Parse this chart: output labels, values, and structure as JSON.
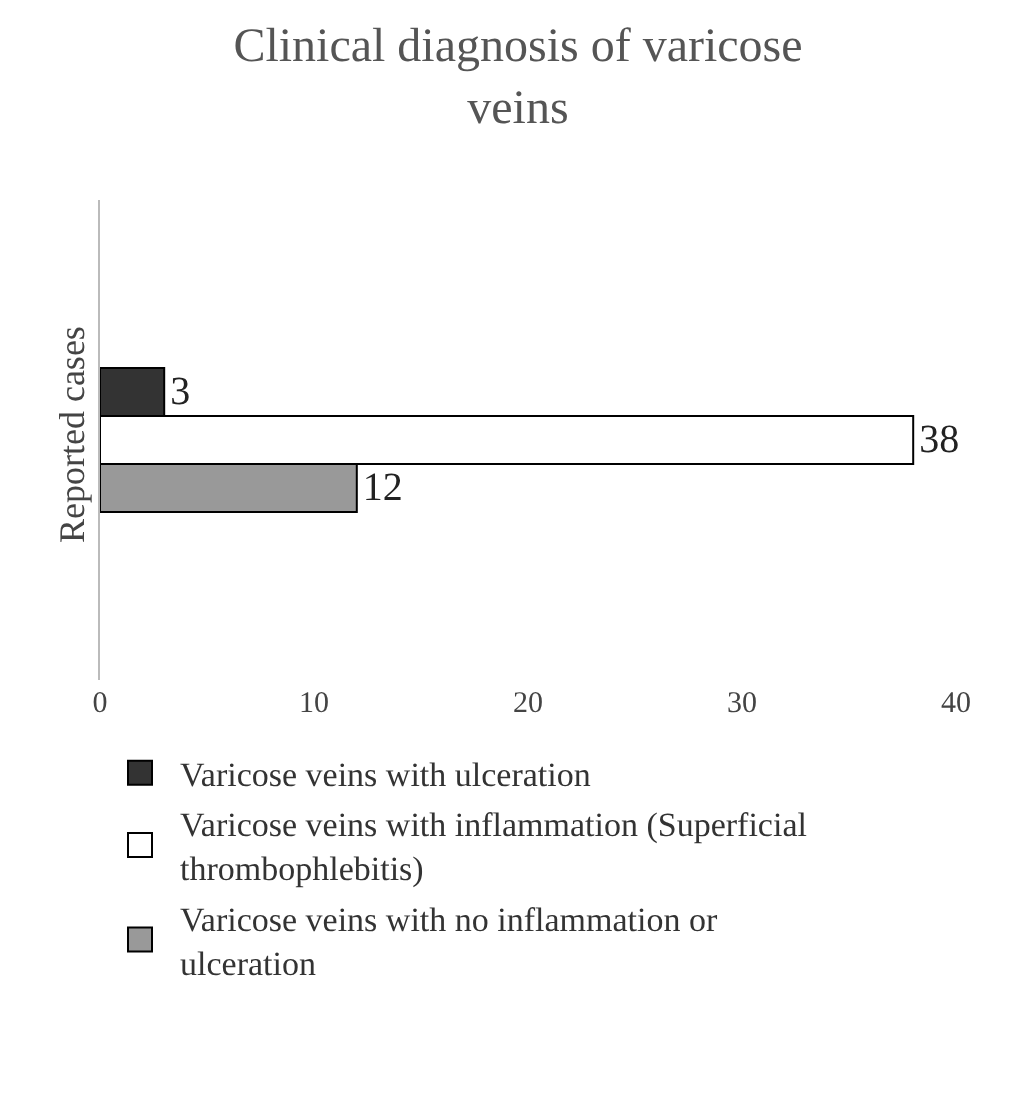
{
  "chart_data": {
    "type": "bar",
    "title": "Clinical diagnosis of varicose veins",
    "orientation": "horizontal",
    "categories": [
      "Reported cases"
    ],
    "series": [
      {
        "name": "Varicose veins with ulceration",
        "color": "#333333",
        "values": [
          3
        ]
      },
      {
        "name": "Varicose veins with inflammation (Superficial thrombophlebitis)",
        "color": "#ffffff",
        "values": [
          38
        ]
      },
      {
        "name": "Varicose veins with no inflammation or ulceration",
        "color": "#999999",
        "values": [
          12
        ]
      }
    ],
    "xlim": [
      0,
      40
    ],
    "xticks": [
      0,
      10,
      20,
      30,
      40
    ],
    "data_labels": true,
    "legend": "bottom"
  }
}
